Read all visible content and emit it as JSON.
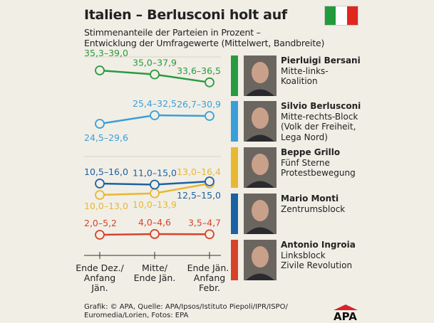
{
  "title": "Italien – Berlusconi holt auf",
  "subtitle_line1": "Stimmenanteile der Parteien in Prozent –",
  "subtitle_line2": "Entwicklung der Umfragewerte (Mittelwert, Bandbreite)",
  "flag_colors": [
    "#239b3c",
    "#ffffff",
    "#e0271f"
  ],
  "chart_data": {
    "type": "line",
    "categories": [
      "Ende Dez./ Anfang Jän.",
      "Mitte/ Ende Jän.",
      "Ende Jän./ Anfang Febr."
    ],
    "category_lines": [
      [
        "Ende Dez./",
        "Anfang",
        "Jän."
      ],
      [
        "Mitte/",
        "Ende Jän."
      ],
      [
        "Ende Jän./",
        "Anfang",
        "Febr."
      ]
    ],
    "series": [
      {
        "name": "Pierluigi Bersani",
        "color": "#2a9a3e",
        "values": [
          37.15,
          36.45,
          35.05
        ],
        "ranges": [
          "35,3–39,0",
          "35,0–37,9",
          "33,6–36,5"
        ]
      },
      {
        "name": "Silvio Berlusconi",
        "color": "#3a9fd8",
        "values": [
          27.05,
          28.95,
          28.8
        ],
        "ranges": [
          "24,5–29,6",
          "25,4–32,5",
          "26,7–30,9"
        ]
      },
      {
        "name": "Beppe Grillo",
        "color": "#e8b830",
        "values": [
          11.5,
          11.95,
          14.7
        ],
        "ranges": [
          "10,0–13,0",
          "10,0–13,9",
          "13,0–16,4"
        ]
      },
      {
        "name": "Mario Monti",
        "color": "#1b62a3",
        "values": [
          13.25,
          13.0,
          13.75
        ],
        "ranges": [
          "10,5–16,0",
          "11,0–15,0",
          "12,5–15,0"
        ]
      },
      {
        "name": "Antonio Ingroia",
        "color": "#d6432a",
        "values": [
          3.6,
          4.3,
          4.1
        ],
        "ranges": [
          "2,0–5,2",
          "4,0–4,6",
          "3,5–4,7"
        ]
      }
    ],
    "broken_axis": true
  },
  "legend": [
    {
      "name": "Pierluigi Bersani",
      "lines": [
        "Mitte-links-",
        "Koalition"
      ]
    },
    {
      "name": "Silvio Berlusconi",
      "lines": [
        "Mitte-rechts-Block",
        "(Volk der Freiheit,",
        "Lega Nord)"
      ]
    },
    {
      "name": "Beppe Grillo",
      "lines": [
        "Fünf Sterne",
        "Protestbewegung"
      ]
    },
    {
      "name": "Mario Monti",
      "lines": [
        "Zentrumsblock"
      ]
    },
    {
      "name": "Antonio Ingroia",
      "lines": [
        "Linksblock",
        "Zivile Revolution"
      ]
    }
  ],
  "footer_line1": "Grafik: © APA, Quelle: APA/Ipsos/Istituto Piepoli/IPR/ISPO/",
  "footer_line2": "Euromedia/Lorien, Fotos: EPA",
  "logo": "APA"
}
